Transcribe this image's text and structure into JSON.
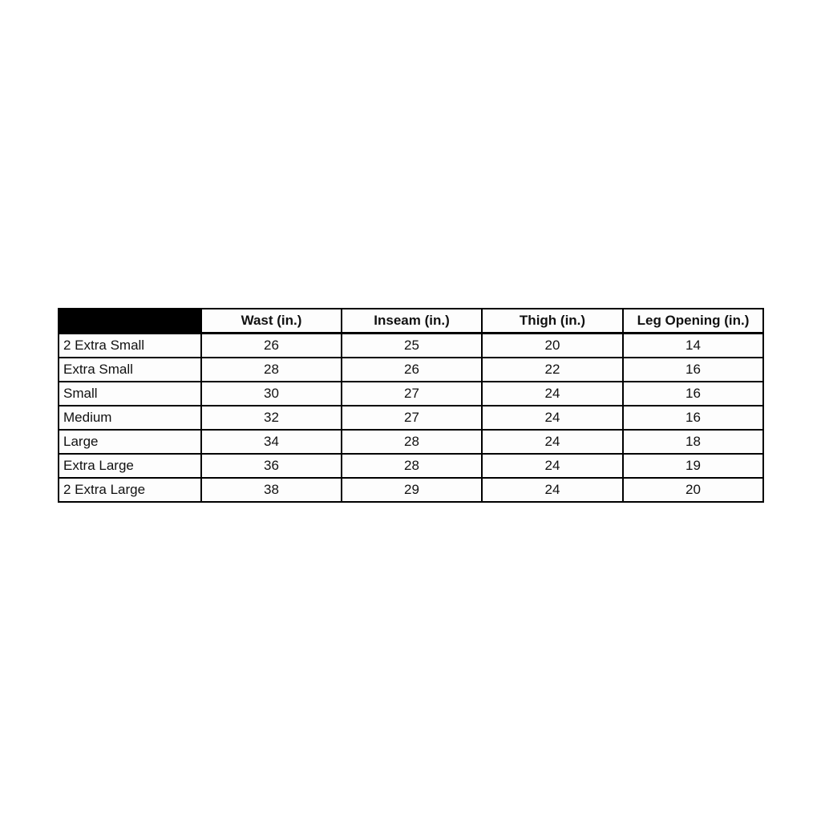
{
  "chart_data": {
    "type": "table",
    "title": "",
    "columns": [
      "",
      "Wast (in.)",
      "Inseam (in.)",
      "Thigh (in.)",
      "Leg Opening (in.)"
    ],
    "rows": [
      {
        "label": "2 Extra Small",
        "values": [
          "26",
          "25",
          "20",
          "14"
        ]
      },
      {
        "label": "Extra Small",
        "values": [
          "28",
          "26",
          "22",
          "16"
        ]
      },
      {
        "label": "Small",
        "values": [
          "30",
          "27",
          "24",
          "16"
        ]
      },
      {
        "label": "Medium",
        "values": [
          "32",
          "27",
          "24",
          "16"
        ]
      },
      {
        "label": "Large",
        "values": [
          "34",
          "28",
          "24",
          "18"
        ]
      },
      {
        "label": "Extra Large",
        "values": [
          "36",
          "28",
          "24",
          "19"
        ]
      },
      {
        "label": "2 Extra Large",
        "values": [
          "38",
          "29",
          "24",
          "20"
        ]
      }
    ]
  },
  "colors": {
    "header_corner_bg": "#000000",
    "border": "#000000",
    "page_background": "#ffffff",
    "text": "#111111"
  }
}
